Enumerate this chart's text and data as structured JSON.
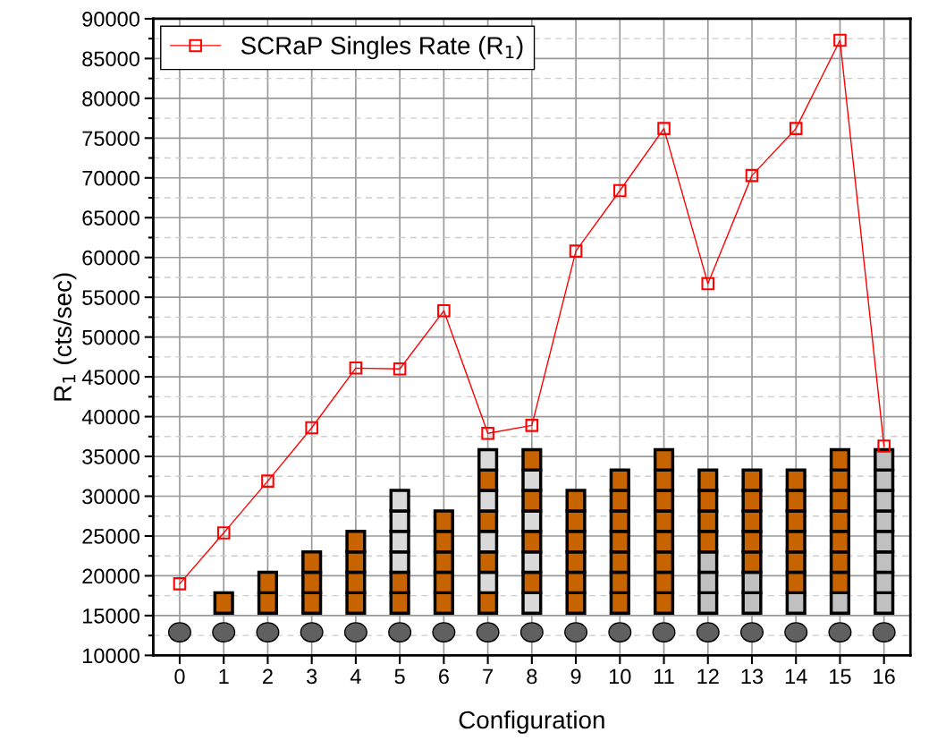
{
  "chart_data": {
    "type": "line",
    "xlabel": "Configuration",
    "ylabel": "R$_{1}$ (cts/sec)",
    "categories": [
      "0",
      "1",
      "2",
      "3",
      "4",
      "5",
      "6",
      "7",
      "8",
      "9",
      "10",
      "11",
      "12",
      "13",
      "14",
      "15",
      "16"
    ],
    "series": [
      {
        "name": "SCRaP Singles Rate (R$_{1}$)",
        "color": "#ff0000",
        "values": [
          19000,
          25400,
          31900,
          38600,
          46100,
          46000,
          53300,
          37900,
          38900,
          60800,
          68400,
          76200,
          56700,
          70300,
          76200,
          87300,
          36300
        ]
      }
    ],
    "ylim": [
      10000,
      90000
    ],
    "yticks": [
      10000,
      15000,
      20000,
      25000,
      30000,
      35000,
      40000,
      45000,
      50000,
      55000,
      60000,
      65000,
      70000,
      75000,
      80000,
      85000,
      90000
    ],
    "grid": true,
    "legend": "top left",
    "marker": "square",
    "line_style": "solid"
  }
}
